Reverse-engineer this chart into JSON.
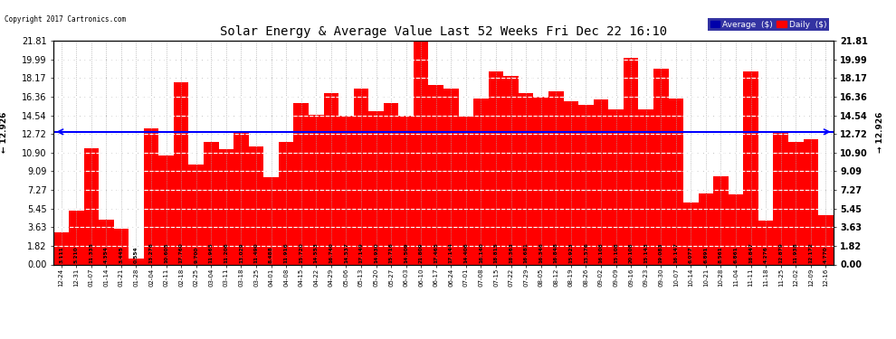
{
  "title": "Solar Energy & Average Value Last 52 Weeks Fri Dec 22 16:10",
  "copyright": "Copyright 2017 Cartronics.com",
  "average_label": "12.926",
  "average_value": 12.926,
  "bar_color": "#FF0000",
  "average_line_color": "#0000FF",
  "background_color": "#FFFFFF",
  "grid_color": "#AAAAAA",
  "yticks": [
    0.0,
    1.82,
    3.63,
    5.45,
    7.27,
    9.09,
    10.9,
    12.72,
    14.54,
    16.36,
    18.17,
    19.99,
    21.81
  ],
  "categories": [
    "12-24",
    "12-31",
    "01-07",
    "01-14",
    "01-21",
    "01-28",
    "02-04",
    "02-11",
    "02-18",
    "02-25",
    "03-04",
    "03-11",
    "03-18",
    "03-25",
    "04-01",
    "04-08",
    "04-15",
    "04-22",
    "04-29",
    "05-06",
    "05-13",
    "05-20",
    "05-27",
    "06-03",
    "06-10",
    "06-17",
    "06-24",
    "07-01",
    "07-08",
    "07-15",
    "07-22",
    "07-29",
    "08-05",
    "08-12",
    "08-19",
    "08-26",
    "09-02",
    "09-09",
    "09-16",
    "09-23",
    "09-30",
    "10-07",
    "10-14",
    "10-21",
    "10-28",
    "11-04",
    "11-11",
    "11-18",
    "11-25",
    "12-02",
    "12-09",
    "12-16"
  ],
  "values": [
    3.111,
    5.21,
    11.335,
    4.354,
    3.445,
    0.554,
    13.276,
    10.605,
    17.76,
    9.7,
    11.965,
    11.206,
    13.029,
    11.49,
    8.488,
    11.916,
    15.72,
    14.553,
    16.74,
    14.537,
    17.149,
    14.93,
    15.716,
    14.509,
    21.809,
    17.465,
    17.144,
    14.406,
    16.14,
    18.815,
    18.363,
    16.681,
    16.346,
    16.848,
    15.923,
    15.576,
    16.108,
    15.108,
    20.108,
    15.143,
    19.083,
    16.147,
    6.077,
    6.891,
    8.561,
    6.861,
    18.847,
    4.276,
    12.879,
    11.938,
    12.172,
    4.77
  ],
  "legend_avg_color": "#0000AA",
  "legend_daily_color": "#FF0000",
  "ylim": [
    0,
    21.81
  ]
}
